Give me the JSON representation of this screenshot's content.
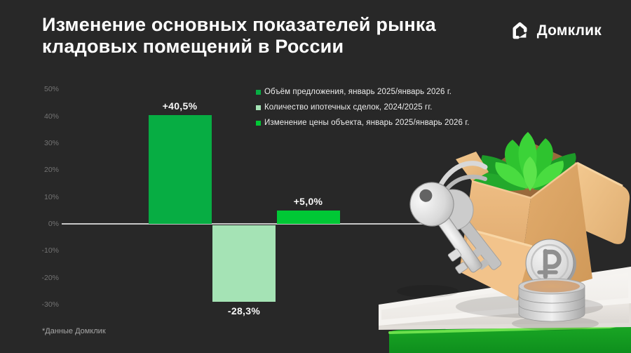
{
  "background_color": "#282828",
  "header": {
    "title_line1": "Изменение основных показателей рынка",
    "title_line2": "кладовых помещений в России"
  },
  "logo": {
    "text": "Домклик",
    "icon": "domclick-house-icon",
    "color": "#ffffff"
  },
  "legend": {
    "items": [
      {
        "label": "Объём предложения, январь 2025/январь 2026 г.",
        "color": "#07ad43"
      },
      {
        "label": "Количество ипотечных сделок, 2024/2025 гг.",
        "color": "#a5e3b5"
      },
      {
        "label": "Изменение цены объекта, январь 2025/январь 2026 г.",
        "color": "#00c835"
      }
    ]
  },
  "chart_data": {
    "type": "bar",
    "categories": [
      "Объём предложения, январь 2025/январь 2026 г.",
      "Количество ипотечных сделок, 2024/2025 гг.",
      "Изменение цены объекта, январь 2025/январь 2026 г."
    ],
    "values": [
      40.5,
      -28.3,
      5.0
    ],
    "value_labels": [
      "+40,5%",
      "-28,3%",
      "+5,0%"
    ],
    "bar_colors": [
      "#07ad43",
      "#a5e3b5",
      "#00c835"
    ],
    "title": "Изменение основных показателей рынка кладовых помещений в России",
    "xlabel": "",
    "ylabel": "",
    "ylim": [
      -30,
      50
    ],
    "ytick_values": [
      50,
      40,
      30,
      20,
      10,
      0,
      -10,
      -20,
      -30
    ],
    "ytick_labels": [
      "50%",
      "40%",
      "30%",
      "20%",
      "10%",
      "0%",
      "-10%",
      "-20%",
      "-30%"
    ],
    "grid": false,
    "legend_position": "top-center",
    "baseline_color": "#c7c7c7"
  },
  "footnote": "*Данные Домклик",
  "illustration": {
    "elements": [
      "keys-icon",
      "cardboard-box",
      "succulent-plant",
      "ruble-coin-icon",
      "coin-stack",
      "white-platform",
      "green-pedestal"
    ]
  }
}
